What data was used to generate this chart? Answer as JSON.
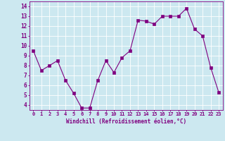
{
  "x": [
    0,
    1,
    2,
    3,
    4,
    5,
    6,
    7,
    8,
    9,
    10,
    11,
    12,
    13,
    14,
    15,
    16,
    17,
    18,
    19,
    20,
    21,
    22,
    23
  ],
  "y": [
    9.5,
    7.5,
    8.0,
    8.5,
    6.5,
    5.2,
    3.7,
    3.7,
    6.5,
    8.5,
    7.3,
    8.8,
    9.5,
    12.6,
    12.5,
    12.2,
    13.0,
    13.0,
    13.0,
    13.8,
    11.7,
    11.0,
    7.8,
    5.3
  ],
  "xlabel": "Windchill (Refroidissement éolien,°C)",
  "xlim": [
    -0.5,
    23.5
  ],
  "ylim": [
    3.5,
    14.5
  ],
  "yticks": [
    4,
    5,
    6,
    7,
    8,
    9,
    10,
    11,
    12,
    13,
    14
  ],
  "xticks": [
    0,
    1,
    2,
    3,
    4,
    5,
    6,
    7,
    8,
    9,
    10,
    11,
    12,
    13,
    14,
    15,
    16,
    17,
    18,
    19,
    20,
    21,
    22,
    23
  ],
  "line_color": "#800080",
  "marker_color": "#800080",
  "bg_color": "#cce8f0",
  "grid_color": "#ffffff",
  "axis_color": "#800080",
  "tick_color": "#800080",
  "label_color": "#800080",
  "font_family": "monospace"
}
